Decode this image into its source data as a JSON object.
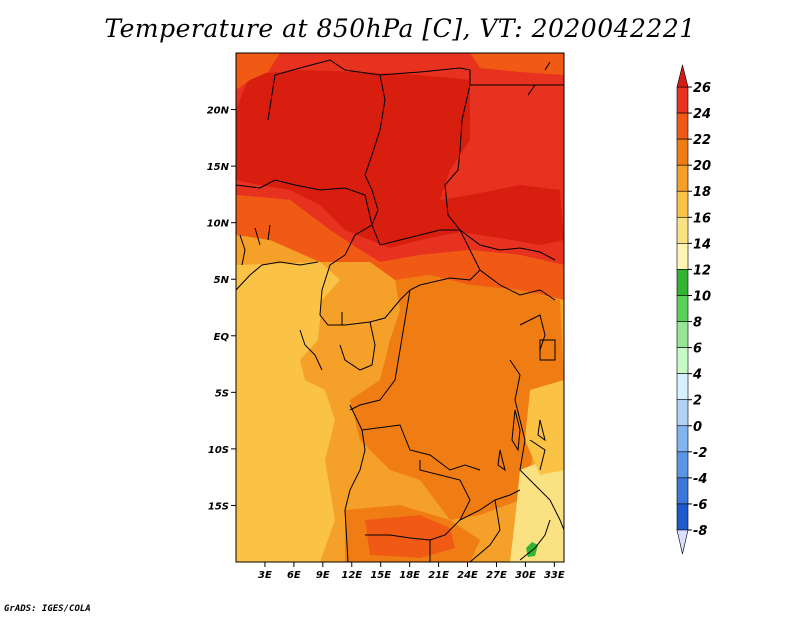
{
  "title": "Temperature at 850hPa [C], VT: 2020042221",
  "credit": "GrADS: IGES/COLA",
  "map": {
    "lon_range": [
      0,
      34
    ],
    "lat_range": [
      -20,
      25
    ],
    "lon_ticks": [
      "3E",
      "6E",
      "9E",
      "12E",
      "15E",
      "18E",
      "21E",
      "24E",
      "27E",
      "30E",
      "33E"
    ],
    "lon_tick_values": [
      3,
      6,
      9,
      12,
      15,
      18,
      21,
      24,
      27,
      30,
      33
    ],
    "lat_ticks": [
      "20N",
      "15N",
      "10N",
      "5N",
      "EQ",
      "5S",
      "10S",
      "15S"
    ],
    "lat_tick_values": [
      20,
      15,
      10,
      5,
      0,
      -5,
      -10,
      -15
    ]
  },
  "colorbar": {
    "labels": [
      "26",
      "24",
      "22",
      "20",
      "18",
      "16",
      "14",
      "12",
      "10",
      "8",
      "6",
      "4",
      "2",
      "0",
      "-2",
      "-4",
      "-6",
      "-8"
    ],
    "colors": [
      "#c81e14",
      "#e6321e",
      "#f05a14",
      "#f07d14",
      "#f5a028",
      "#fac346",
      "#fae182",
      "#fff5b4",
      "#32b432",
      "#5ad25a",
      "#96e696",
      "#c8fac8",
      "#d7f0ff",
      "#afd2f5",
      "#82b4f0",
      "#5a96e6",
      "#3c78dc",
      "#1e5acd",
      "#1441b4",
      "#0a2891",
      "#0a0a64"
    ],
    "top_color": "#d21e14",
    "bottom_color": "#d7e1ff"
  },
  "fill_colors": {
    "deep_red": "#d71e0f",
    "red": "#e6321e",
    "red_orange": "#f05a14",
    "orange": "#f07d14",
    "light_orange": "#f5a028",
    "yellow_orange": "#fac346",
    "pale_yellow": "#fae182",
    "green": "#32b432"
  }
}
